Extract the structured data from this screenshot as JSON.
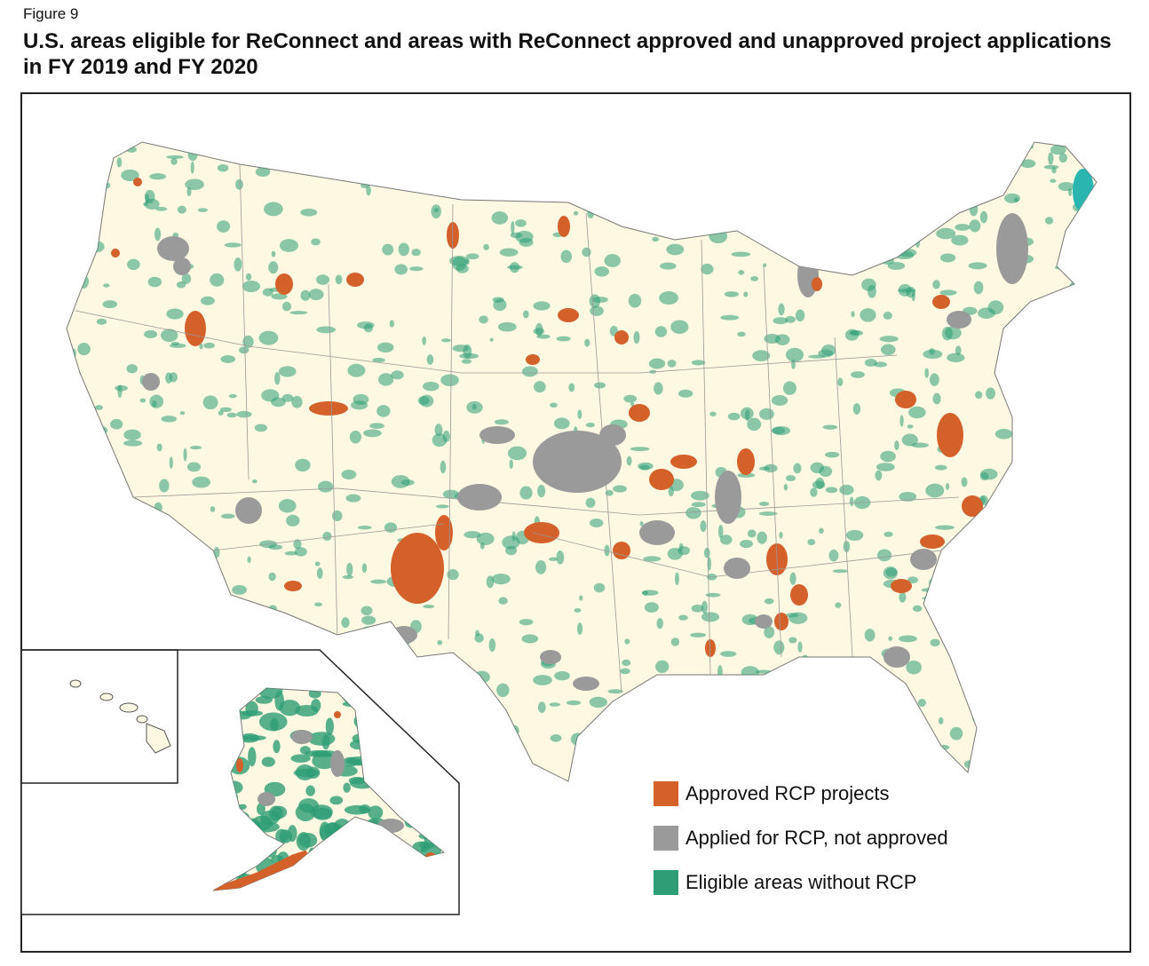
{
  "figure_label": "Figure 9",
  "title": "U.S. areas eligible for ReConnect and areas with ReConnect approved and unapproved project applications in FY 2019 and FY 2020",
  "legend": [
    {
      "label": "Approved RCP projects",
      "color": "#d4602a"
    },
    {
      "label": "Applied for RCP, not approved",
      "color": "#9a9a9a"
    },
    {
      "label": "Eligible areas without RCP",
      "color": "#2e9e76"
    }
  ]
}
